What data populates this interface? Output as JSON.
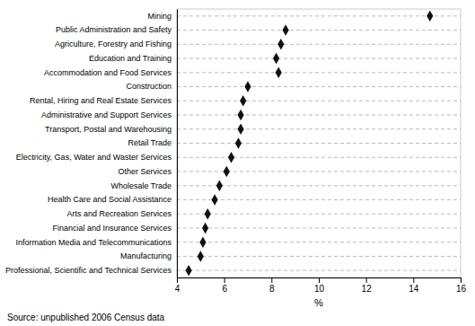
{
  "chart_data": {
    "type": "dot",
    "orientation": "horizontal",
    "categories": [
      "Mining",
      "Public Administration and Safety",
      "Agriculture, Forestry and Fishing",
      "Education and Training",
      "Accommodation and Food Services",
      "Construction",
      "Rental, Hiring and Real Estate Services",
      "Administrative and Support Services",
      "Transport, Postal and Warehousing",
      "Retail Trade",
      "Electricity, Gas, Water and Waster Services",
      "Other Services",
      "Wholesale Trade",
      "Health Care and Social Assistance",
      "Arts and Recreation Services",
      "Financial and Insurance Services",
      "Information Media and Telecommunications",
      "Manufacturing",
      "Professional, Scientific and Technical Services"
    ],
    "values": [
      14.7,
      8.6,
      8.4,
      8.2,
      8.3,
      7.0,
      6.8,
      6.7,
      6.7,
      6.6,
      6.3,
      6.1,
      5.8,
      5.6,
      5.3,
      5.2,
      5.1,
      5.0,
      4.5
    ],
    "xlim": [
      4,
      16
    ],
    "xticks": [
      4,
      6,
      8,
      10,
      12,
      14,
      16
    ],
    "xlabel": "%",
    "color": "#111111",
    "marker": "diamond",
    "line_style": "dashed",
    "grid": false,
    "source": "Source: unpublished 2006 Census data"
  }
}
